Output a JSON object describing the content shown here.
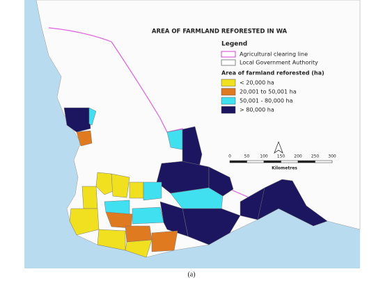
{
  "title": "AREA OF FARMLAND REFORESTED IN WA",
  "legend": {
    "title": "Legend",
    "lines": [
      {
        "label": "Agricultural clearing line",
        "color": "#e060e0"
      },
      {
        "label": "Local Government Authority",
        "color": "#9a9a9a"
      }
    ],
    "classes_title": "Area of farmland reforested (ha)",
    "classes": [
      {
        "label": "< 20,000 ha",
        "color": "#f0e020"
      },
      {
        "label": "20,001 to 50,001 ha",
        "color": "#e07a20"
      },
      {
        "label": "50,001 - 80,000 ha",
        "color": "#40e0f0"
      },
      {
        "label": "> 80,000 ha",
        "color": "#1c1660"
      }
    ]
  },
  "scale": {
    "ticks": [
      0,
      50,
      100,
      150,
      200,
      250,
      300
    ],
    "unit": "Kilometres"
  },
  "caption": "(a)"
}
